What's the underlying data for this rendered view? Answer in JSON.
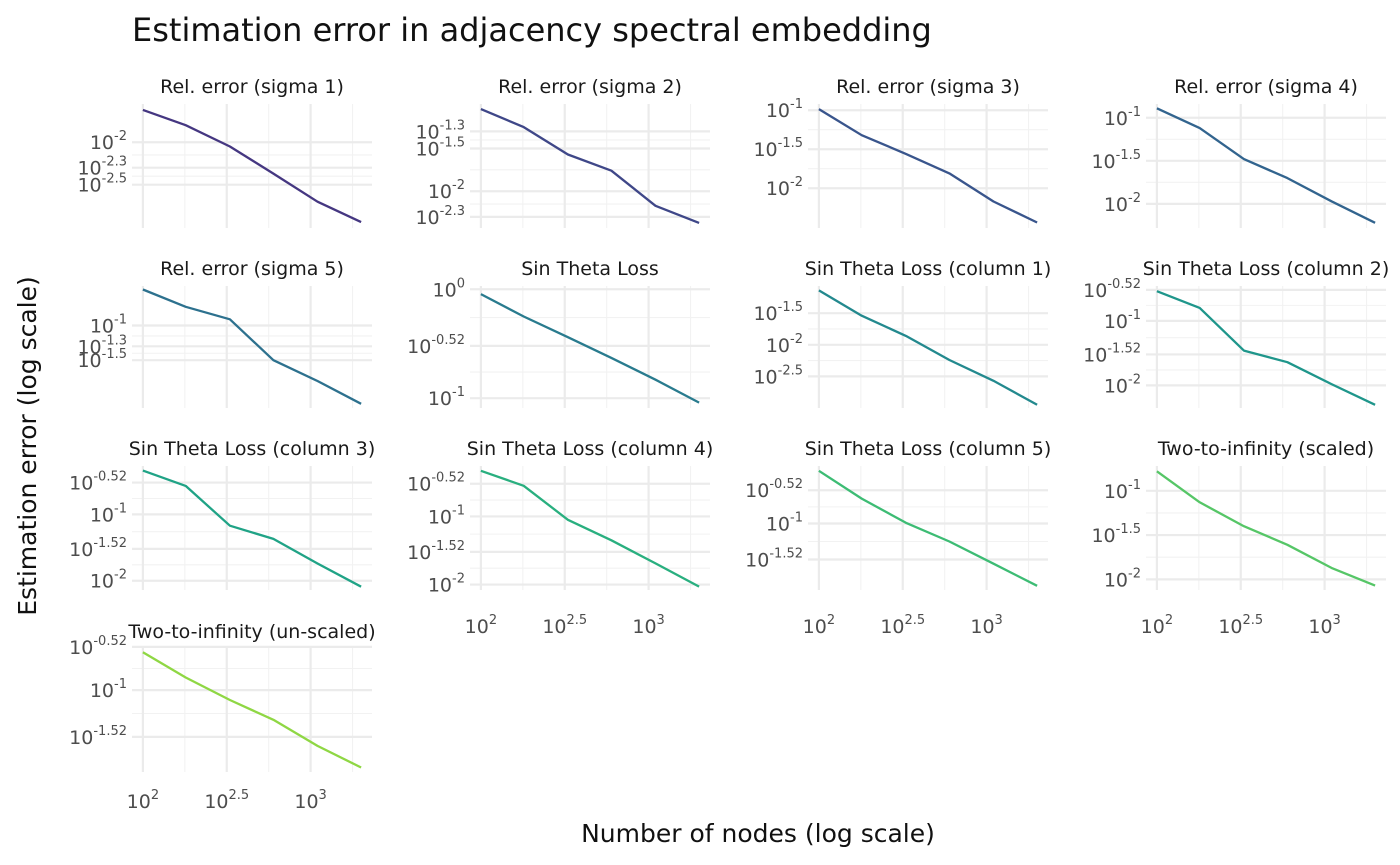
{
  "chart_data": {
    "type": "line",
    "title": "Estimation error in adjacency spectral embedding",
    "xlabel": "Number of nodes (log scale)",
    "ylabel": "Estimation error (log scale)",
    "x_scale": "log10",
    "y_scale": "log10",
    "x": [
      100,
      180,
      330,
      600,
      1100,
      2000
    ],
    "x_ticks": [
      {
        "base": "10",
        "exp": "2",
        "value": 100
      },
      {
        "base": "10",
        "exp": "2.5",
        "value": 316.2
      },
      {
        "base": "10",
        "exp": "3",
        "value": 1000
      }
    ],
    "grid": true,
    "legend": "none",
    "panels": [
      {
        "title": "Rel. error (sigma 1)",
        "color": "#453781",
        "row": 0,
        "col": 0,
        "log10_y": [
          -1.62,
          -1.8,
          -2.05,
          -2.37,
          -2.7,
          -2.94
        ],
        "ylim": [
          -3.01,
          -1.55
        ],
        "y_ticks": [
          {
            "exp": "-2",
            "value": -2.0
          },
          {
            "exp": "-2.3",
            "value": -2.3
          },
          {
            "exp": "-2.5",
            "value": -2.5
          }
        ]
      },
      {
        "title": "Rel. error (sigma 2)",
        "color": "#3f4788",
        "row": 0,
        "col": 1,
        "log10_y": [
          -1.04,
          -1.25,
          -1.57,
          -1.76,
          -2.17,
          -2.37
        ],
        "ylim": [
          -2.43,
          -0.98
        ],
        "y_ticks": [
          {
            "exp": "-1.3",
            "value": -1.3
          },
          {
            "exp": "-1.5",
            "value": -1.5
          },
          {
            "exp": "-2",
            "value": -2.0
          },
          {
            "exp": "-2.3",
            "value": -2.3
          }
        ]
      },
      {
        "title": "Rel. error (sigma 3)",
        "color": "#39558c",
        "row": 0,
        "col": 2,
        "log10_y": [
          -0.985,
          -1.32,
          -1.56,
          -1.81,
          -2.17,
          -2.44
        ],
        "ylim": [
          -2.51,
          -0.92
        ],
        "y_ticks": [
          {
            "exp": "-1",
            "value": -1.0
          },
          {
            "exp": "-1.5",
            "value": -1.5
          },
          {
            "exp": "-2",
            "value": -2.0
          }
        ]
      },
      {
        "title": "Rel. error (sigma 4)",
        "color": "#32648e",
        "row": 0,
        "col": 3,
        "log10_y": [
          -0.89,
          -1.12,
          -1.48,
          -1.7,
          -1.97,
          -2.22
        ],
        "ylim": [
          -2.28,
          -0.84
        ],
        "y_ticks": [
          {
            "exp": "-1",
            "value": -1.0
          },
          {
            "exp": "-1.5",
            "value": -1.5
          },
          {
            "exp": "-2",
            "value": -2.0
          }
        ]
      },
      {
        "title": "Rel. error (sigma 5)",
        "color": "#2d718e",
        "row": 1,
        "col": 0,
        "log10_y": [
          -0.48,
          -0.73,
          -0.91,
          -1.5,
          -1.8,
          -2.13
        ],
        "ylim": [
          -2.19,
          -0.43
        ],
        "y_ticks": [
          {
            "exp": "-1",
            "value": -1.0
          },
          {
            "exp": "-1.3",
            "value": -1.3
          },
          {
            "exp": "-1.5",
            "value": -1.5
          }
        ]
      },
      {
        "title": "Sin Theta Loss",
        "color": "#297b8e",
        "row": 1,
        "col": 1,
        "log10_y": [
          -0.044,
          -0.25,
          -0.44,
          -0.63,
          -0.83,
          -1.04
        ],
        "ylim": [
          -1.09,
          0.03
        ],
        "y_ticks": [
          {
            "exp": "0",
            "value": 0.0
          },
          {
            "exp": "-0.52",
            "value": -0.52
          },
          {
            "exp": "-1",
            "value": -1.0
          }
        ]
      },
      {
        "title": "Sin Theta Loss (column 1)",
        "color": "#23898e",
        "row": 1,
        "col": 2,
        "log10_y": [
          -1.14,
          -1.54,
          -1.86,
          -2.24,
          -2.57,
          -2.95
        ],
        "ylim": [
          -3.0,
          -1.07
        ],
        "y_ticks": [
          {
            "exp": "-1.5",
            "value": -1.5
          },
          {
            "exp": "-2",
            "value": -2.0
          },
          {
            "exp": "-2.5",
            "value": -2.5
          }
        ]
      },
      {
        "title": "Sin Theta Loss (column 2)",
        "color": "#1f968b",
        "row": 1,
        "col": 3,
        "log10_y": [
          -0.54,
          -0.8,
          -1.46,
          -1.64,
          -1.98,
          -2.3
        ],
        "ylim": [
          -2.35,
          -0.46
        ],
        "y_ticks": [
          {
            "exp": "-0.52",
            "value": -0.52
          },
          {
            "exp": "-1",
            "value": -1.0
          },
          {
            "exp": "-1.52",
            "value": -1.52
          },
          {
            "exp": "-2",
            "value": -2.0
          }
        ]
      },
      {
        "title": "Sin Theta Loss (column 3)",
        "color": "#20a386",
        "row": 2,
        "col": 0,
        "log10_y": [
          -0.34,
          -0.57,
          -1.17,
          -1.37,
          -1.74,
          -2.09
        ],
        "ylim": [
          -2.14,
          -0.27
        ],
        "y_ticks": [
          {
            "exp": "-0.52",
            "value": -0.52
          },
          {
            "exp": "-1",
            "value": -1.0
          },
          {
            "exp": "-1.52",
            "value": -1.52
          },
          {
            "exp": "-2",
            "value": -2.0
          }
        ]
      },
      {
        "title": "Sin Theta Loss (column 4)",
        "color": "#29af7f",
        "row": 2,
        "col": 1,
        "log10_y": [
          -0.33,
          -0.55,
          -1.05,
          -1.35,
          -1.69,
          -2.03
        ],
        "ylim": [
          -2.08,
          -0.26
        ],
        "y_ticks": [
          {
            "exp": "-0.52",
            "value": -0.52
          },
          {
            "exp": "-1",
            "value": -1.0
          },
          {
            "exp": "-1.52",
            "value": -1.52
          },
          {
            "exp": "-2",
            "value": -2.0
          }
        ]
      },
      {
        "title": "Sin Theta Loss (column 5)",
        "color": "#3dbc74",
        "row": 2,
        "col": 2,
        "log10_y": [
          -0.24,
          -0.64,
          -0.99,
          -1.26,
          -1.58,
          -1.9
        ],
        "ylim": [
          -1.96,
          -0.17
        ],
        "y_ticks": [
          {
            "exp": "-0.52",
            "value": -0.52
          },
          {
            "exp": "-1",
            "value": -1.0
          },
          {
            "exp": "-1.52",
            "value": -1.52
          }
        ]
      },
      {
        "title": "Two-to-infinity (scaled)",
        "color": "#56c667",
        "row": 2,
        "col": 3,
        "log10_y": [
          -0.78,
          -1.13,
          -1.4,
          -1.61,
          -1.87,
          -2.07
        ],
        "ylim": [
          -2.12,
          -0.72
        ],
        "y_ticks": [
          {
            "exp": "-1",
            "value": -1.0
          },
          {
            "exp": "-1.5",
            "value": -1.5
          },
          {
            "exp": "-2",
            "value": -2.0
          }
        ]
      },
      {
        "title": "Two-to-infinity (un-scaled)",
        "color": "#8fd744",
        "row": 3,
        "col": 0,
        "log10_y": [
          -0.58,
          -0.86,
          -1.11,
          -1.33,
          -1.62,
          -1.86
        ],
        "ylim": [
          -1.91,
          -0.51
        ],
        "y_ticks": [
          {
            "exp": "-0.52",
            "value": -0.52
          },
          {
            "exp": "-1",
            "value": -1.0
          },
          {
            "exp": "-1.52",
            "value": -1.52
          }
        ]
      }
    ]
  }
}
